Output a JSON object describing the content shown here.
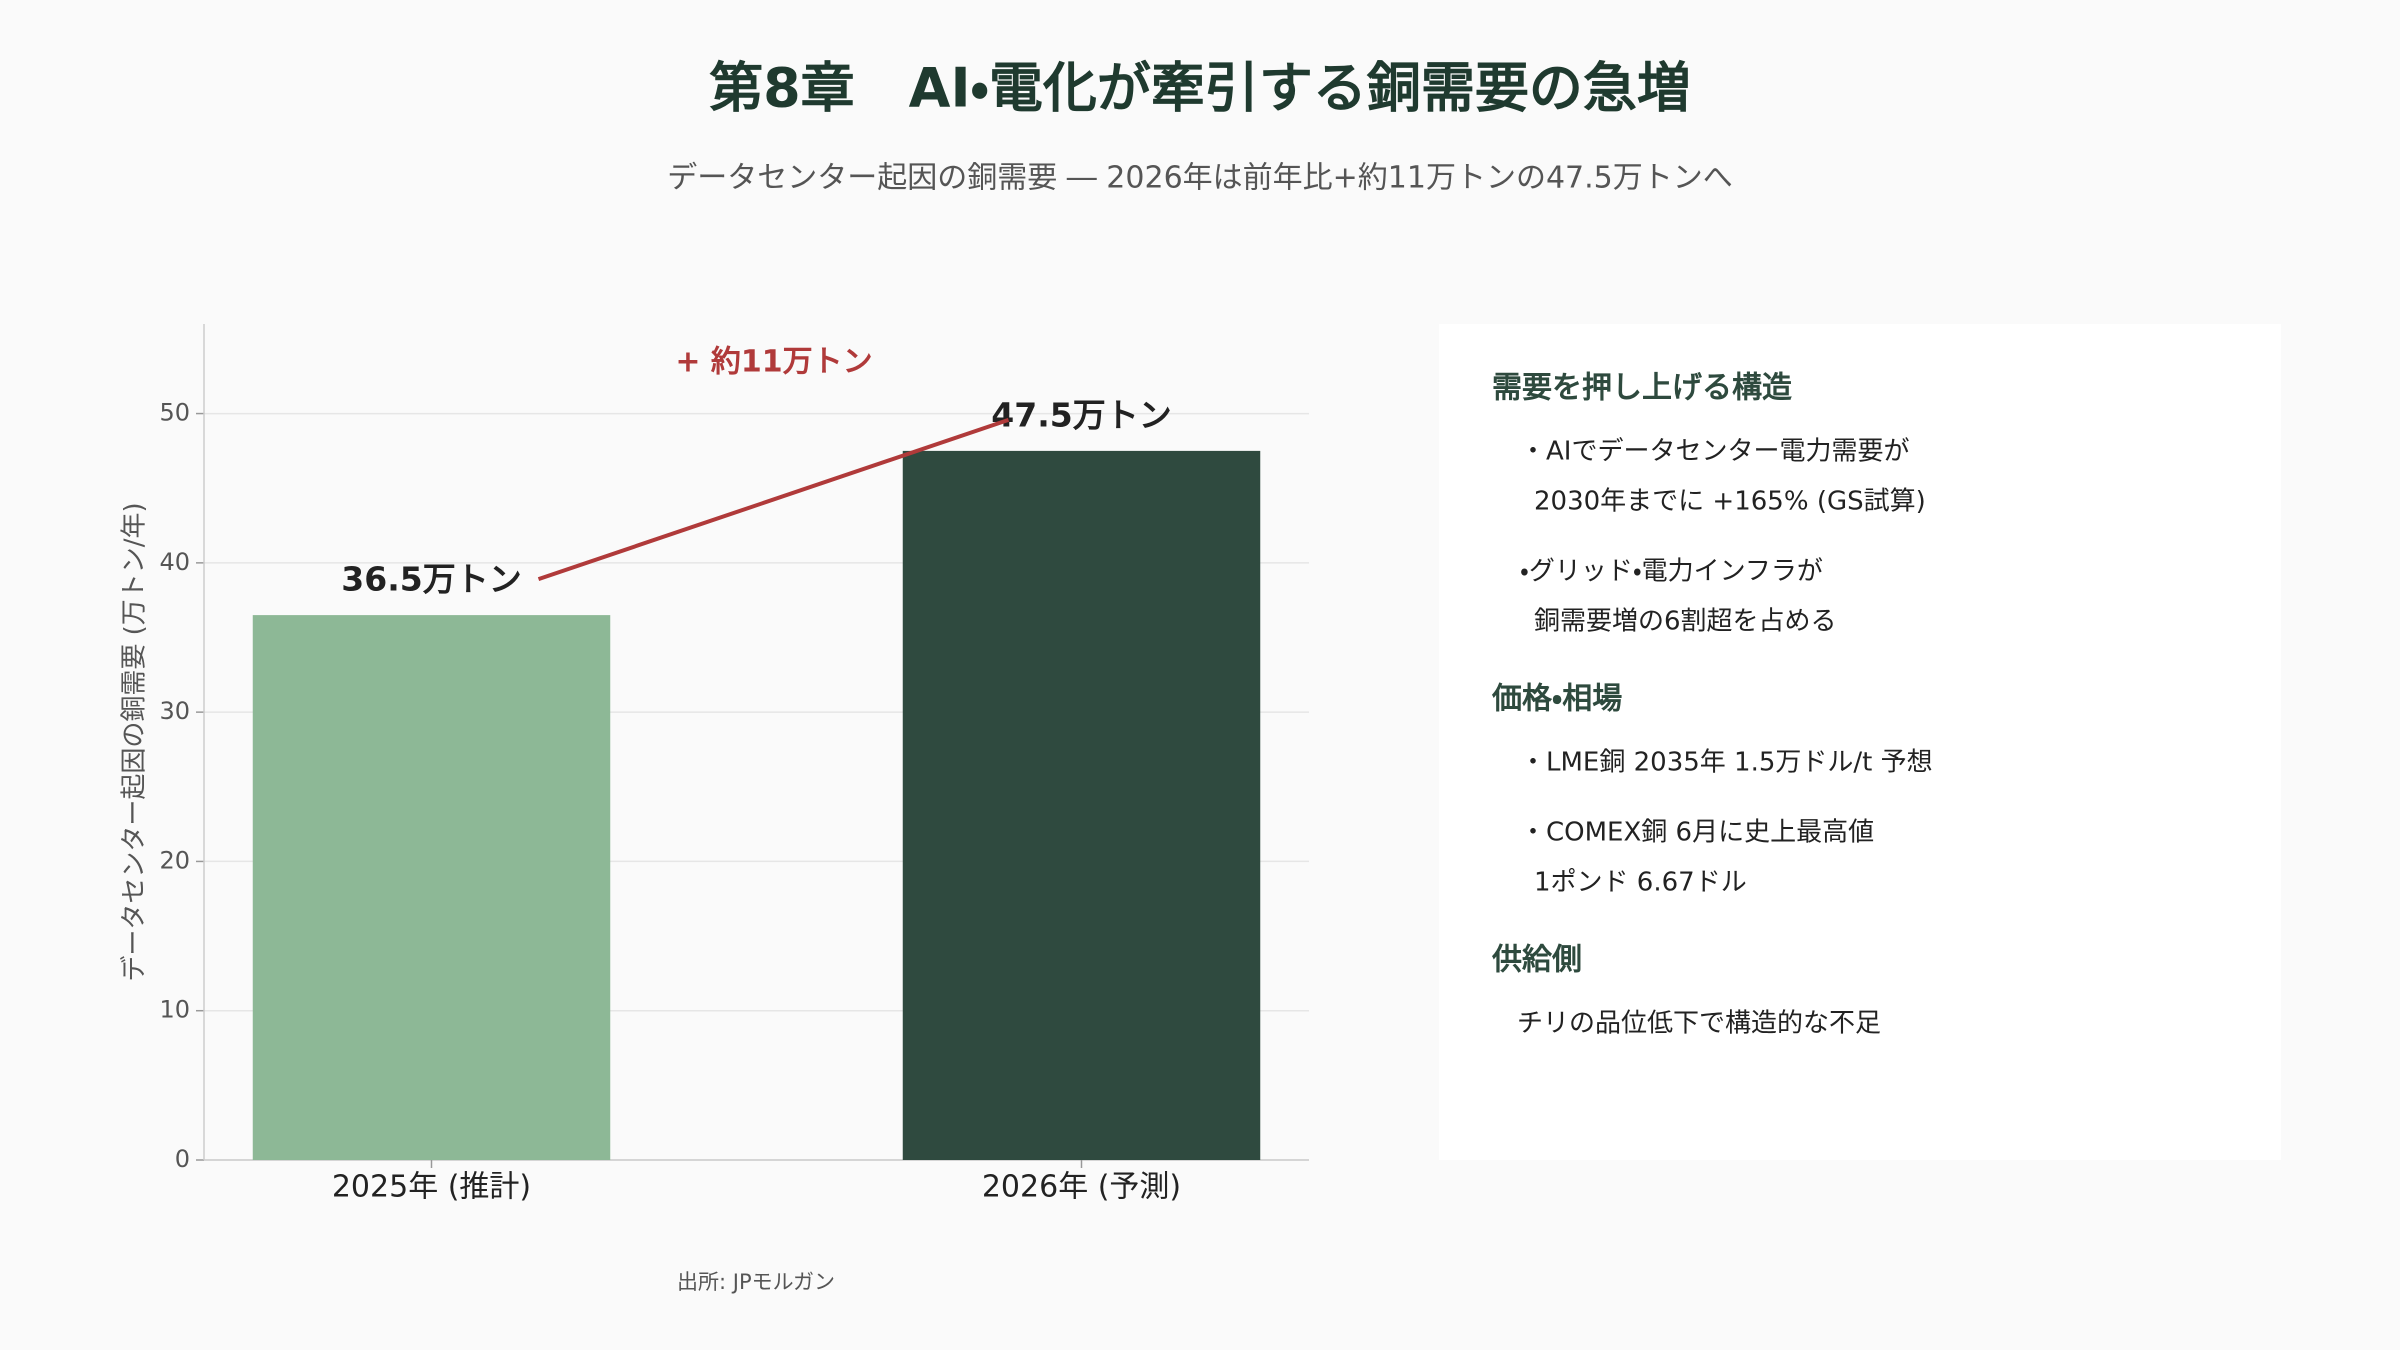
{
  "chart_data": {
    "type": "bar",
    "title": "第8章　AI・電化が牽引する銅需要の急増",
    "subtitle": "データセンター起因の銅需要 ― 2026年は前年比+約11万トンの47.5万トンへ",
    "ylabel": "データセンター起因の銅需要 (万トン/年)",
    "categories": [
      "2025年 (推計)",
      "2026年 (予測)"
    ],
    "values": [
      36.5,
      47.5
    ],
    "value_labels": [
      "36.5万トン",
      "47.5万トン"
    ],
    "colors": [
      "#8db896",
      "#2f4a3f"
    ],
    "annotation": "+ 約11万トン",
    "source": "出所: JPモルガン",
    "ylim": [
      0,
      56
    ],
    "yticks": [
      0,
      10,
      20,
      30,
      40,
      50
    ],
    "grid": true
  },
  "side_panel": {
    "sections": [
      {
        "heading": "需要を押し上げる構造",
        "items": [
          [
            "・AIでデータセンター電力需要が",
            "2030年までに +165% (GS試算)"
          ],
          [
            "・グリッド・電力インフラが",
            "銅需要増の6割超を占める"
          ]
        ]
      },
      {
        "heading": "価格・相場",
        "items": [
          [
            "・LME銅 2035年 1.5万ドル/t 予想"
          ],
          [
            "・COMEX銅 6月に史上最高値",
            "1ポンド 6.67ドル"
          ]
        ]
      },
      {
        "heading": "供給側",
        "items": [
          [
            "チリの品位低下で構造的な不足"
          ]
        ]
      }
    ]
  }
}
